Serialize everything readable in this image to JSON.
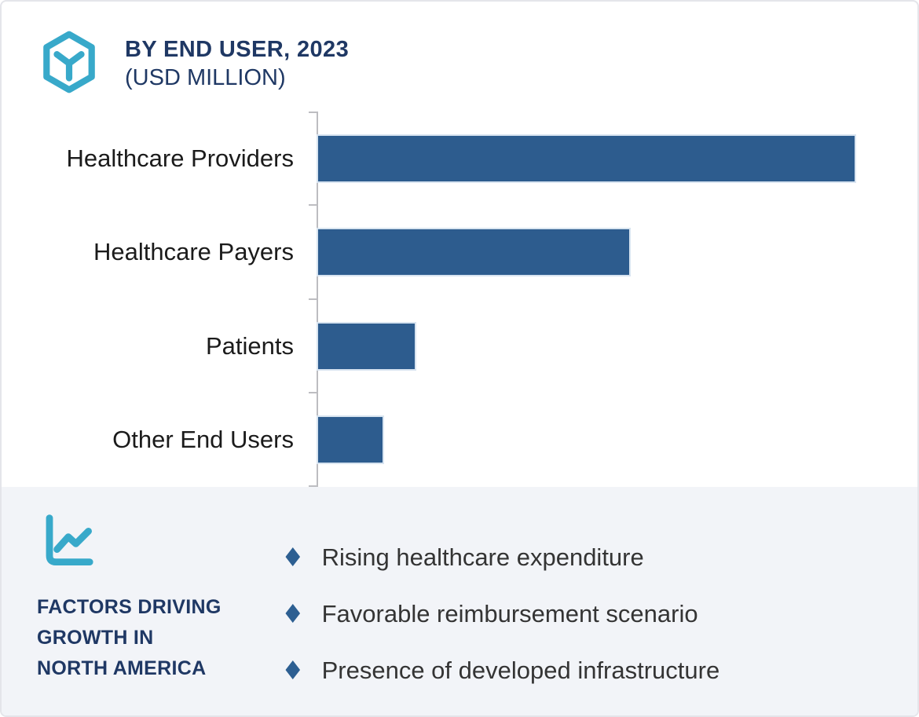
{
  "header": {
    "title": "BY END USER, 2023",
    "subtitle": "(USD MILLION)"
  },
  "chart_data": {
    "type": "bar",
    "orientation": "horizontal",
    "title": "BY END USER, 2023",
    "subtitle": "(USD MILLION)",
    "categories": [
      "Healthcare Providers",
      "Healthcare Payers",
      "Patients",
      "Other End Users"
    ],
    "values": [
      100,
      58,
      18,
      12
    ],
    "values_note": "relative bar lengths as % of largest bar; chart displays no numeric axis ticks or data labels",
    "xlabel": "",
    "ylabel": "",
    "xlim": [
      0,
      100
    ],
    "grid": false,
    "legend": false,
    "bar_color": "#2D5C8E",
    "axis_color": "#BDBDC1"
  },
  "factors": {
    "title_lines": [
      "FACTORS DRIVING",
      "GROWTH IN",
      "NORTH AMERICA"
    ],
    "items": [
      "Rising healthcare expenditure",
      "Favorable reimbursement scenario",
      "Presence of developed infrastructure"
    ],
    "bullet_glyph": "♦",
    "bullet_color": "#2D5F92"
  },
  "icons": {
    "header_icon": "hexagon-cube-icon",
    "factors_icon": "line-chart-icon"
  },
  "colors": {
    "accent_teal": "#38A9CA",
    "navy_text": "#1F3864",
    "bar_blue": "#2D5C8E",
    "panel_bg": "#F2F4F8",
    "card_border": "#E4E5EA"
  }
}
